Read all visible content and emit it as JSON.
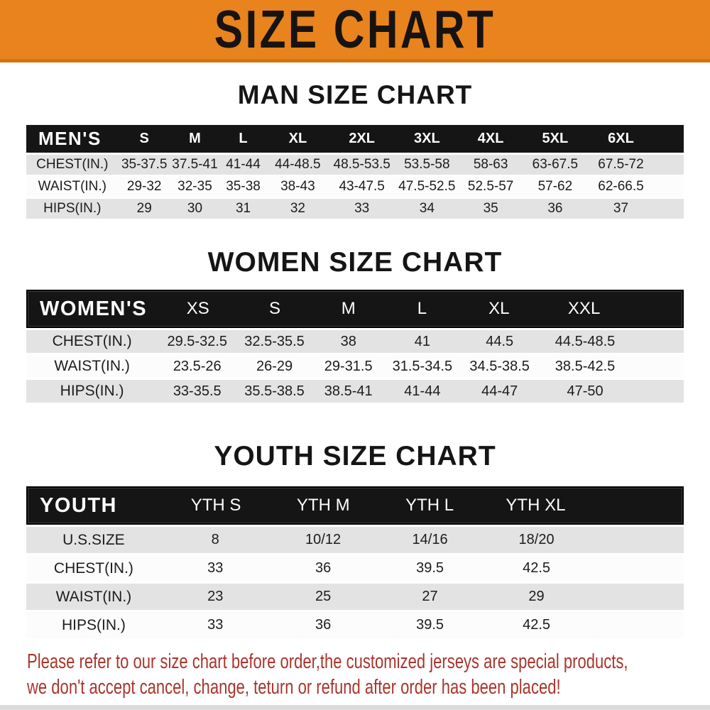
{
  "banner": {
    "title": "SIZE CHART",
    "bg_color": "#E8831D",
    "text_color": "#171310"
  },
  "sections": [
    {
      "heading": "MAN SIZE CHART",
      "header_label": "MEN'S",
      "columns": [
        "S",
        "M",
        "L",
        "XL",
        "2XL",
        "3XL",
        "4XL",
        "5XL",
        "6XL"
      ],
      "rows": [
        {
          "label": "CHEST(IN.)",
          "values": [
            "35-37.5",
            "37.5-41",
            "41-44",
            "44-48.5",
            "48.5-53.5",
            "53.5-58",
            "58-63",
            "63-67.5",
            "67.5-72"
          ]
        },
        {
          "label": "WAIST(IN.)",
          "values": [
            "29-32",
            "32-35",
            "35-38",
            "38-43",
            "43-47.5",
            "47.5-52.5",
            "52.5-57",
            "57-62",
            "62-66.5"
          ]
        },
        {
          "label": "HIPS(IN.)",
          "values": [
            "29",
            "30",
            "31",
            "32",
            "33",
            "34",
            "35",
            "36",
            "37"
          ]
        }
      ]
    },
    {
      "heading": "WOMEN SIZE CHART",
      "header_label": "WOMEN'S",
      "columns": [
        "XS",
        "S",
        "M",
        "L",
        "XL",
        "XXL"
      ],
      "rows": [
        {
          "label": "CHEST(IN.)",
          "values": [
            "29.5-32.5",
            "32.5-35.5",
            "38",
            "41",
            "44.5",
            "44.5-48.5"
          ]
        },
        {
          "label": "WAIST(IN.)",
          "values": [
            "23.5-26",
            "26-29",
            "29-31.5",
            "31.5-34.5",
            "34.5-38.5",
            "38.5-42.5"
          ]
        },
        {
          "label": "HIPS(IN.)",
          "values": [
            "33-35.5",
            "35.5-38.5",
            "38.5-41",
            "41-44",
            "44-47",
            "47-50"
          ]
        }
      ]
    },
    {
      "heading": "YOUTH SIZE CHART",
      "header_label": "YOUTH",
      "columns": [
        "YTH S",
        "YTH M",
        "YTH L",
        "YTH XL"
      ],
      "rows": [
        {
          "label": "U.S.SIZE",
          "values": [
            "8",
            "10/12",
            "14/16",
            "18/20"
          ]
        },
        {
          "label": "CHEST(IN.)",
          "values": [
            "33",
            "36",
            "39.5",
            "42.5"
          ]
        },
        {
          "label": "WAIST(IN.)",
          "values": [
            "23",
            "25",
            "27",
            "29"
          ]
        },
        {
          "label": "HIPS(IN.)",
          "values": [
            "33",
            "36",
            "39.5",
            "42.5"
          ]
        }
      ]
    }
  ],
  "disclaimer": {
    "line1": "Please refer to our size chart before order,the customized jerseys are special products,",
    "line2": "we don't accept cancel, change, teturn or refund after order has been placed!",
    "color": "#A9352C"
  }
}
